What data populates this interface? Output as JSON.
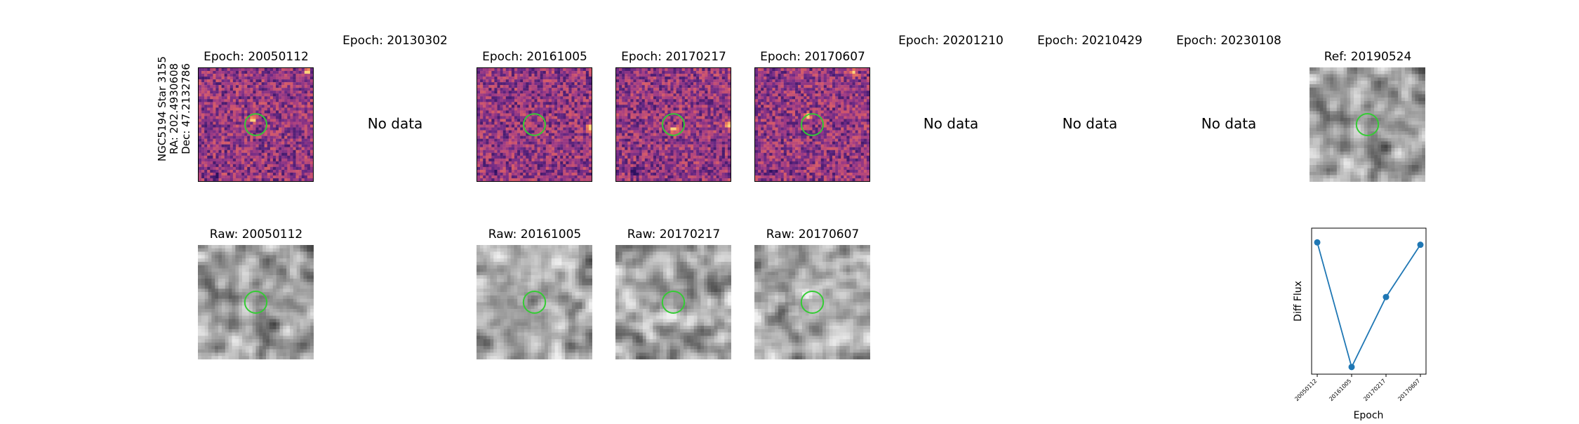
{
  "star": {
    "name": "NGC5194 Star 3155",
    "ra": "RA: 202.4930608",
    "dec": "Dec: 47.2132786"
  },
  "no_data_text": "No data",
  "epoch_panels": [
    {
      "title": "Epoch: 20050112",
      "has_data": true
    },
    {
      "title": "Epoch: 20130302",
      "has_data": false
    },
    {
      "title": "Epoch: 20161005",
      "has_data": true
    },
    {
      "title": "Epoch: 20170217",
      "has_data": true
    },
    {
      "title": "Epoch: 20170607",
      "has_data": true
    },
    {
      "title": "Epoch: 20201210",
      "has_data": false
    },
    {
      "title": "Epoch: 20210429",
      "has_data": false
    },
    {
      "title": "Epoch: 20230108",
      "has_data": false
    }
  ],
  "reference_panel": {
    "title": "Ref: 20190524"
  },
  "raw_panels": [
    {
      "title": "Raw: 20050112"
    },
    {
      "title": "Raw: 20161005"
    },
    {
      "title": "Raw: 20170217"
    },
    {
      "title": "Raw: 20170607"
    }
  ],
  "colors": {
    "aperture": "#33cc33",
    "series": "#1f77b4",
    "diff_colormap": [
      "#2d1160",
      "#6b2a85",
      "#a33d84",
      "#d2596b",
      "#f07f55",
      "#fbd27b"
    ],
    "raw_colormap": [
      "#3a3a3a",
      "#777777",
      "#b5b5b5",
      "#eeeeee"
    ]
  },
  "chart_data": {
    "type": "line",
    "xlabel": "Epoch",
    "ylabel": "Diff Flux",
    "x": [
      "20050112",
      "20161005",
      "20170217",
      "20170607"
    ],
    "values": [
      0.93,
      -0.12,
      0.47,
      0.91
    ],
    "ylim": [
      -0.18,
      1.05
    ],
    "grid": false,
    "legend": "none"
  }
}
